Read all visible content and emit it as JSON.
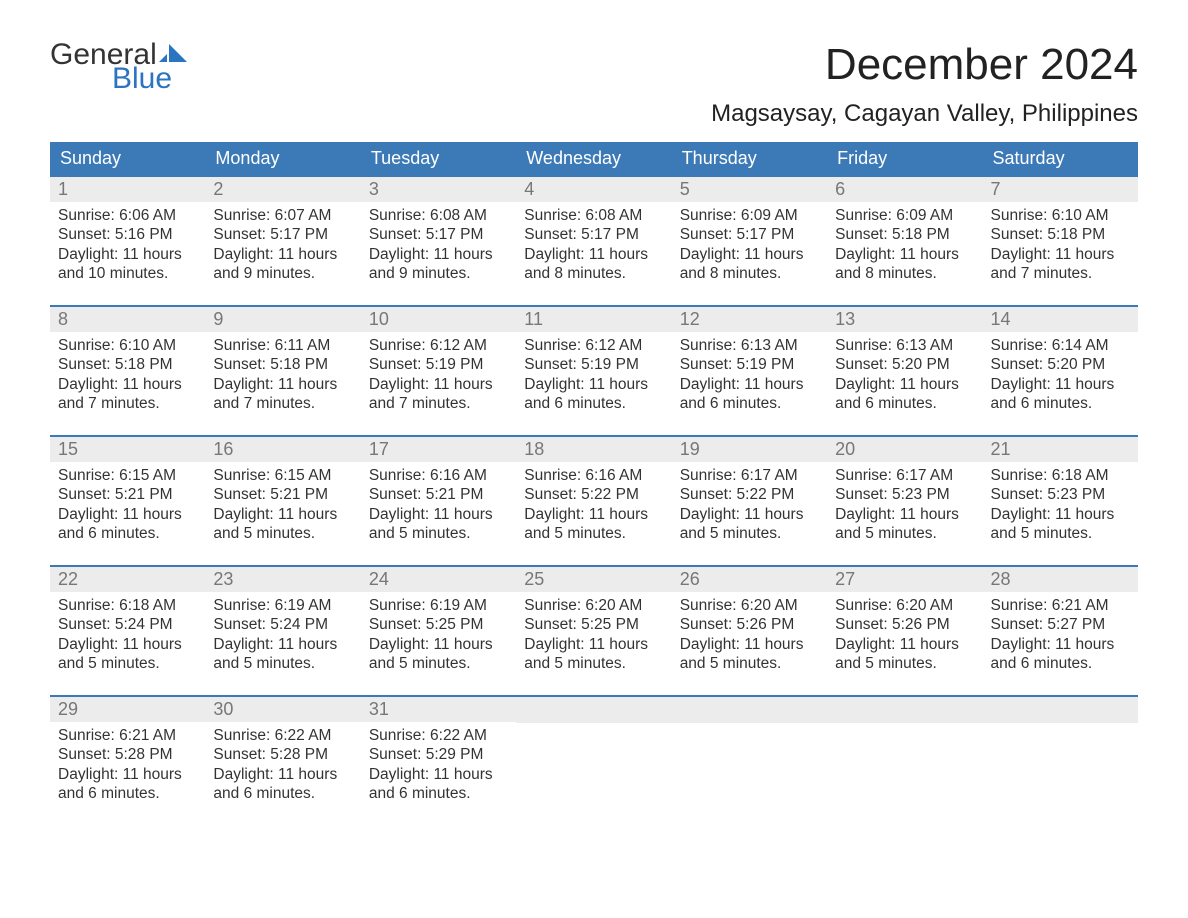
{
  "logo": {
    "textTop": "General",
    "textBottom": "Blue",
    "flagColor": "#2b74c0"
  },
  "title": {
    "monthYear": "December 2024",
    "location": "Magsaysay, Cagayan Valley, Philippines"
  },
  "colors": {
    "headerBg": "#3b79b7",
    "headerText": "#ffffff",
    "dayBand": "#ececec",
    "dayNumText": "#777777",
    "bodyText": "#333333",
    "weekDivider": "#3b79b7",
    "logoBlue": "#2b74c0",
    "background": "#ffffff"
  },
  "typography": {
    "titleFontSize": 44,
    "locationFontSize": 24,
    "dayHeaderFontSize": 18,
    "dayNumFontSize": 18,
    "cellFontSize": 15.5
  },
  "dayNames": [
    "Sunday",
    "Monday",
    "Tuesday",
    "Wednesday",
    "Thursday",
    "Friday",
    "Saturday"
  ],
  "labelSunrise": "Sunrise: ",
  "labelSunset": "Sunset: ",
  "labelDaylightPrefix": "Daylight: ",
  "weeks": [
    [
      {
        "n": "1",
        "sr": "6:06 AM",
        "ss": "5:16 PM",
        "dl": "11 hours and 10 minutes."
      },
      {
        "n": "2",
        "sr": "6:07 AM",
        "ss": "5:17 PM",
        "dl": "11 hours and 9 minutes."
      },
      {
        "n": "3",
        "sr": "6:08 AM",
        "ss": "5:17 PM",
        "dl": "11 hours and 9 minutes."
      },
      {
        "n": "4",
        "sr": "6:08 AM",
        "ss": "5:17 PM",
        "dl": "11 hours and 8 minutes."
      },
      {
        "n": "5",
        "sr": "6:09 AM",
        "ss": "5:17 PM",
        "dl": "11 hours and 8 minutes."
      },
      {
        "n": "6",
        "sr": "6:09 AM",
        "ss": "5:18 PM",
        "dl": "11 hours and 8 minutes."
      },
      {
        "n": "7",
        "sr": "6:10 AM",
        "ss": "5:18 PM",
        "dl": "11 hours and 7 minutes."
      }
    ],
    [
      {
        "n": "8",
        "sr": "6:10 AM",
        "ss": "5:18 PM",
        "dl": "11 hours and 7 minutes."
      },
      {
        "n": "9",
        "sr": "6:11 AM",
        "ss": "5:18 PM",
        "dl": "11 hours and 7 minutes."
      },
      {
        "n": "10",
        "sr": "6:12 AM",
        "ss": "5:19 PM",
        "dl": "11 hours and 7 minutes."
      },
      {
        "n": "11",
        "sr": "6:12 AM",
        "ss": "5:19 PM",
        "dl": "11 hours and 6 minutes."
      },
      {
        "n": "12",
        "sr": "6:13 AM",
        "ss": "5:19 PM",
        "dl": "11 hours and 6 minutes."
      },
      {
        "n": "13",
        "sr": "6:13 AM",
        "ss": "5:20 PM",
        "dl": "11 hours and 6 minutes."
      },
      {
        "n": "14",
        "sr": "6:14 AM",
        "ss": "5:20 PM",
        "dl": "11 hours and 6 minutes."
      }
    ],
    [
      {
        "n": "15",
        "sr": "6:15 AM",
        "ss": "5:21 PM",
        "dl": "11 hours and 6 minutes."
      },
      {
        "n": "16",
        "sr": "6:15 AM",
        "ss": "5:21 PM",
        "dl": "11 hours and 5 minutes."
      },
      {
        "n": "17",
        "sr": "6:16 AM",
        "ss": "5:21 PM",
        "dl": "11 hours and 5 minutes."
      },
      {
        "n": "18",
        "sr": "6:16 AM",
        "ss": "5:22 PM",
        "dl": "11 hours and 5 minutes."
      },
      {
        "n": "19",
        "sr": "6:17 AM",
        "ss": "5:22 PM",
        "dl": "11 hours and 5 minutes."
      },
      {
        "n": "20",
        "sr": "6:17 AM",
        "ss": "5:23 PM",
        "dl": "11 hours and 5 minutes."
      },
      {
        "n": "21",
        "sr": "6:18 AM",
        "ss": "5:23 PM",
        "dl": "11 hours and 5 minutes."
      }
    ],
    [
      {
        "n": "22",
        "sr": "6:18 AM",
        "ss": "5:24 PM",
        "dl": "11 hours and 5 minutes."
      },
      {
        "n": "23",
        "sr": "6:19 AM",
        "ss": "5:24 PM",
        "dl": "11 hours and 5 minutes."
      },
      {
        "n": "24",
        "sr": "6:19 AM",
        "ss": "5:25 PM",
        "dl": "11 hours and 5 minutes."
      },
      {
        "n": "25",
        "sr": "6:20 AM",
        "ss": "5:25 PM",
        "dl": "11 hours and 5 minutes."
      },
      {
        "n": "26",
        "sr": "6:20 AM",
        "ss": "5:26 PM",
        "dl": "11 hours and 5 minutes."
      },
      {
        "n": "27",
        "sr": "6:20 AM",
        "ss": "5:26 PM",
        "dl": "11 hours and 5 minutes."
      },
      {
        "n": "28",
        "sr": "6:21 AM",
        "ss": "5:27 PM",
        "dl": "11 hours and 6 minutes."
      }
    ],
    [
      {
        "n": "29",
        "sr": "6:21 AM",
        "ss": "5:28 PM",
        "dl": "11 hours and 6 minutes."
      },
      {
        "n": "30",
        "sr": "6:22 AM",
        "ss": "5:28 PM",
        "dl": "11 hours and 6 minutes."
      },
      {
        "n": "31",
        "sr": "6:22 AM",
        "ss": "5:29 PM",
        "dl": "11 hours and 6 minutes."
      },
      null,
      null,
      null,
      null
    ]
  ]
}
